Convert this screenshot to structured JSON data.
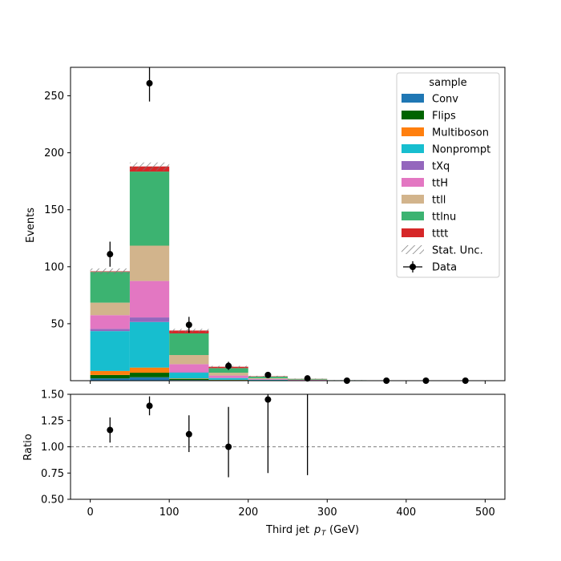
{
  "chart_data": {
    "type": "bar",
    "stacked": true,
    "xlabel": "Third jet",
    "xlabel_math": "p",
    "xlabel_sub": "T",
    "xlabel_unit": "(GeV)",
    "ylabel": "Events",
    "ratio_ylabel": "Ratio",
    "xlim": [
      -25,
      525
    ],
    "ylim": [
      0,
      275
    ],
    "ratio_ylim": [
      0.5,
      1.5
    ],
    "x_ticks": [
      "0",
      "100",
      "200",
      "300",
      "400",
      "500"
    ],
    "x_tick_values": [
      0,
      100,
      200,
      300,
      400,
      500
    ],
    "y_ticks": [
      "50",
      "100",
      "150",
      "200",
      "250"
    ],
    "y_tick_values": [
      50,
      100,
      150,
      200,
      250
    ],
    "ratio_ticks": [
      "0.50",
      "0.75",
      "1.00",
      "1.25",
      "1.50"
    ],
    "ratio_tick_values": [
      0.5,
      0.75,
      1.0,
      1.25,
      1.5
    ],
    "bin_edges": [
      0,
      50,
      100,
      150,
      200,
      250,
      300,
      350,
      400,
      450,
      500
    ],
    "legend_title": "sample",
    "legend_position": "top-right",
    "series": [
      {
        "name": "Conv",
        "color": "#1f77b4",
        "values": [
          2,
          3,
          0.6,
          0.3,
          0.1,
          0.05,
          0,
          0,
          0,
          0
        ]
      },
      {
        "name": "Flips",
        "color": "#006400",
        "values": [
          3,
          4,
          1.0,
          0.3,
          0.1,
          0.05,
          0,
          0,
          0,
          0
        ]
      },
      {
        "name": "Multiboson",
        "color": "#ff7f0e",
        "values": [
          3.5,
          4.5,
          0.4,
          0.2,
          0.1,
          0,
          0,
          0,
          0,
          0
        ]
      },
      {
        "name": "Nonprompt",
        "color": "#17becf",
        "values": [
          35,
          40,
          5,
          1.5,
          0.5,
          0.3,
          0,
          0,
          0,
          0
        ]
      },
      {
        "name": "tXq",
        "color": "#9467bd",
        "values": [
          2,
          4,
          0.5,
          0.2,
          0.1,
          0,
          0,
          0,
          0,
          0
        ]
      },
      {
        "name": "ttH",
        "color": "#e377c2",
        "values": [
          12,
          32,
          7,
          2,
          0.6,
          0.3,
          0.1,
          0,
          0,
          0
        ]
      },
      {
        "name": "ttll",
        "color": "#d2b48c",
        "values": [
          11,
          31,
          8,
          2.5,
          0.7,
          0.3,
          0.1,
          0.05,
          0,
          0
        ]
      },
      {
        "name": "ttlnu",
        "color": "#3cb371",
        "values": [
          27,
          65,
          19,
          4,
          1.4,
          0.6,
          0.2,
          0.1,
          0,
          0
        ]
      },
      {
        "name": "tttt",
        "color": "#d62728",
        "values": [
          0.5,
          4.5,
          2.5,
          1.2,
          0.3,
          0.1,
          0,
          0,
          0,
          0
        ]
      }
    ],
    "stat_unc": {
      "name": "Stat. Unc.",
      "values": [
        2.5,
        3.5,
        1.5,
        0.8,
        0.4,
        0.2,
        0.1,
        0.05,
        0,
        0
      ]
    },
    "data": {
      "name": "Data",
      "x": [
        25,
        75,
        125,
        175,
        225,
        275,
        325,
        375,
        425,
        475
      ],
      "y": [
        111,
        261,
        49,
        13,
        5,
        2,
        0,
        0,
        0,
        0
      ],
      "yerr": [
        11,
        16,
        7,
        3.6,
        2.2,
        1.4,
        0,
        0,
        0,
        0
      ]
    },
    "ratio": {
      "x": [
        25,
        75,
        125,
        175,
        225,
        275
      ],
      "y": [
        1.16,
        1.39,
        1.12,
        1.0,
        1.45,
        null
      ],
      "yerr_low": [
        0.12,
        0.09,
        0.17,
        0.29,
        0.7,
        null
      ],
      "yerr_high": [
        0.12,
        0.09,
        0.18,
        0.38,
        0.3,
        null
      ],
      "line_x": 275,
      "line_low": 0.73,
      "line_high": 1.5,
      "reference": 1.0
    }
  }
}
